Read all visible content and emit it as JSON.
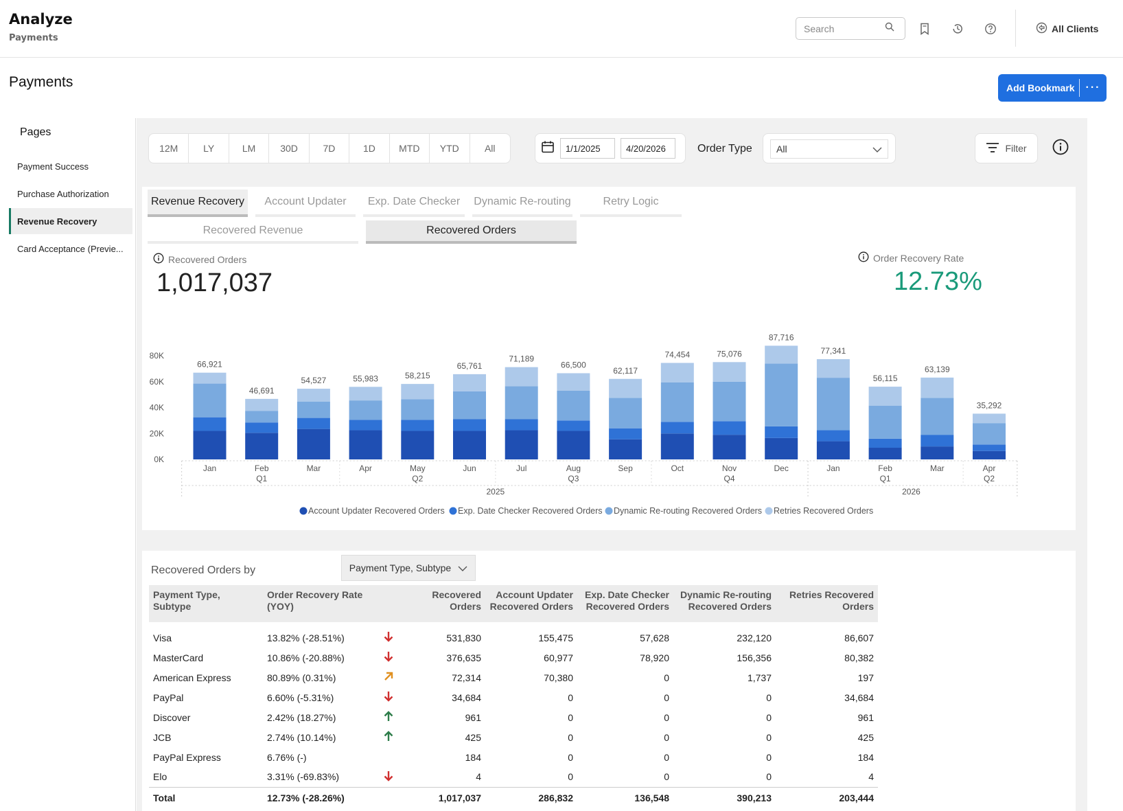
{
  "header": {
    "app_title": "Analyze",
    "app_subtitle": "Payments",
    "search_placeholder": "Search",
    "all_clients_label": "All Clients"
  },
  "page": {
    "title": "Payments",
    "bookmark_label": "Add Bookmark",
    "bookmark_more": "···"
  },
  "sidebar": {
    "title": "Pages",
    "items": [
      {
        "label": "Payment Success"
      },
      {
        "label": "Purchase Authorization"
      },
      {
        "label": "Revenue Recovery"
      },
      {
        "label": "Card Acceptance (Previe..."
      }
    ]
  },
  "filters": {
    "periods": [
      "12M",
      "LY",
      "LM",
      "30D",
      "7D",
      "1D",
      "MTD",
      "YTD",
      "All"
    ],
    "date_from": "1/1/2025",
    "date_to": "4/20/2026",
    "order_type_label": "Order Type",
    "order_type_value": "All",
    "filter_label": "Filter"
  },
  "tabs": [
    "Revenue Recovery",
    "Account Updater",
    "Exp. Date Checker",
    "Dynamic Re-routing",
    "Retry Logic"
  ],
  "subtabs": [
    "Recovered Revenue",
    "Recovered Orders"
  ],
  "kpis": {
    "recovered_orders_label": "Recovered Orders",
    "recovered_orders_value": "1,017,037",
    "recovery_rate_label": "Order Recovery Rate",
    "recovery_rate_value": "12.73%"
  },
  "colors": {
    "account_updater": "#1f4fb3",
    "exp_date_checker": "#2f72d6",
    "dynamic_rerouting": "#7aaadf",
    "retries": "#adc9ea",
    "accent": "#1f6fe0",
    "rate": "#1a9a7a",
    "arrow_down": "#d03030",
    "arrow_up": "#2e7d4a",
    "arrow_upright": "#e09020"
  },
  "chart_data": {
    "type": "bar",
    "stacked": true,
    "categories": [
      "Jan",
      "Feb",
      "Mar",
      "Apr",
      "May",
      "Jun",
      "Jul",
      "Aug",
      "Sep",
      "Oct",
      "Nov",
      "Dec",
      "Jan",
      "Feb",
      "Mar",
      "Apr"
    ],
    "quarter_labels": [
      "",
      "Q1",
      "",
      "",
      "Q2",
      "",
      "",
      "Q3",
      "",
      "",
      "Q4",
      "",
      "",
      "Q1",
      "",
      "Q2"
    ],
    "year_labels": [
      {
        "label": "2025",
        "span": 12
      },
      {
        "label": "2026",
        "span": 4
      }
    ],
    "totals": [
      66921,
      46691,
      54527,
      55983,
      58215,
      65761,
      71189,
      66500,
      62117,
      74454,
      75076,
      87716,
      77341,
      56115,
      63139,
      35292
    ],
    "total_labels": [
      "66,921",
      "46,691",
      "54,527",
      "55,983",
      "58,215",
      "65,761",
      "71,189",
      "66,500",
      "62,117",
      "74,454",
      "75,076",
      "87,716",
      "77,341",
      "56,115",
      "63,139",
      "35,292"
    ],
    "series": [
      {
        "name": "Account Updater Recovered Orders",
        "values": [
          22000,
          20500,
          23500,
          22500,
          22000,
          22000,
          22500,
          22000,
          15500,
          20000,
          19000,
          16500,
          14000,
          9000,
          10000,
          6500
        ]
      },
      {
        "name": "Exp. Date Checker Recovered Orders",
        "values": [
          10500,
          8000,
          8500,
          8000,
          8500,
          9000,
          8500,
          8000,
          8500,
          9000,
          10500,
          9000,
          8500,
          7000,
          9000,
          5000
        ]
      },
      {
        "name": "Dynamic Re-routing Recovered Orders",
        "values": [
          26000,
          9000,
          12500,
          15000,
          16000,
          21500,
          25500,
          23000,
          23500,
          30500,
          30500,
          48500,
          40500,
          25500,
          28500,
          16500
        ]
      },
      {
        "name": "Retries Recovered Orders",
        "values": [
          8421,
          9191,
          10027,
          10483,
          11715,
          13261,
          14689,
          13500,
          14617,
          14954,
          15076,
          13716,
          14341,
          14615,
          15639,
          7292
        ]
      }
    ],
    "ylim": [
      0,
      88000
    ],
    "y_ticks": [
      0,
      20000,
      40000,
      60000,
      80000
    ],
    "y_tick_labels": [
      "0K",
      "20K",
      "40K",
      "60K",
      "80K"
    ],
    "legend_position": "bottom"
  },
  "table": {
    "by_label": "Recovered Orders by",
    "dropdown_value": "Payment Type, Subtype",
    "headers": [
      [
        "Payment Type, Subtype"
      ],
      [
        "Order Recovery Rate",
        "(YOY)"
      ],
      [
        "Recovered",
        "Orders"
      ],
      [
        "Account Updater",
        "Recovered Orders"
      ],
      [
        "Exp. Date Checker",
        "Recovered Orders"
      ],
      [
        "Dynamic Re-routing",
        "Recovered Orders"
      ],
      [
        "Retries Recovered",
        "Orders"
      ]
    ],
    "rows": [
      {
        "name": "Visa",
        "rate": "13.82% (-28.51%)",
        "trend": "down",
        "recovered": "531,830",
        "au": "155,475",
        "edc": "57,628",
        "dr": "232,120",
        "retries": "86,607"
      },
      {
        "name": "MasterCard",
        "rate": "10.86% (-20.88%)",
        "trend": "down",
        "recovered": "376,635",
        "au": "60,977",
        "edc": "78,920",
        "dr": "156,356",
        "retries": "80,382"
      },
      {
        "name": "American Express",
        "rate": "80.89% (0.31%)",
        "trend": "upright",
        "recovered": "72,314",
        "au": "70,380",
        "edc": "0",
        "dr": "1,737",
        "retries": "197"
      },
      {
        "name": "PayPal",
        "rate": "6.60% (-5.31%)",
        "trend": "down",
        "recovered": "34,684",
        "au": "0",
        "edc": "0",
        "dr": "0",
        "retries": "34,684"
      },
      {
        "name": "Discover",
        "rate": "2.42% (18.27%)",
        "trend": "up",
        "recovered": "961",
        "au": "0",
        "edc": "0",
        "dr": "0",
        "retries": "961"
      },
      {
        "name": "JCB",
        "rate": "2.74% (10.14%)",
        "trend": "up",
        "recovered": "425",
        "au": "0",
        "edc": "0",
        "dr": "0",
        "retries": "425"
      },
      {
        "name": "PayPal Express",
        "rate": "6.76% (-)",
        "trend": "none",
        "recovered": "184",
        "au": "0",
        "edc": "0",
        "dr": "0",
        "retries": "184"
      },
      {
        "name": "Elo",
        "rate": "3.31% (-69.83%)",
        "trend": "down",
        "recovered": "4",
        "au": "0",
        "edc": "0",
        "dr": "0",
        "retries": "4"
      }
    ],
    "total": {
      "name": "Total",
      "rate": "12.73% (-28.26%)",
      "recovered": "1,017,037",
      "au": "286,832",
      "edc": "136,548",
      "dr": "390,213",
      "retries": "203,444"
    }
  }
}
